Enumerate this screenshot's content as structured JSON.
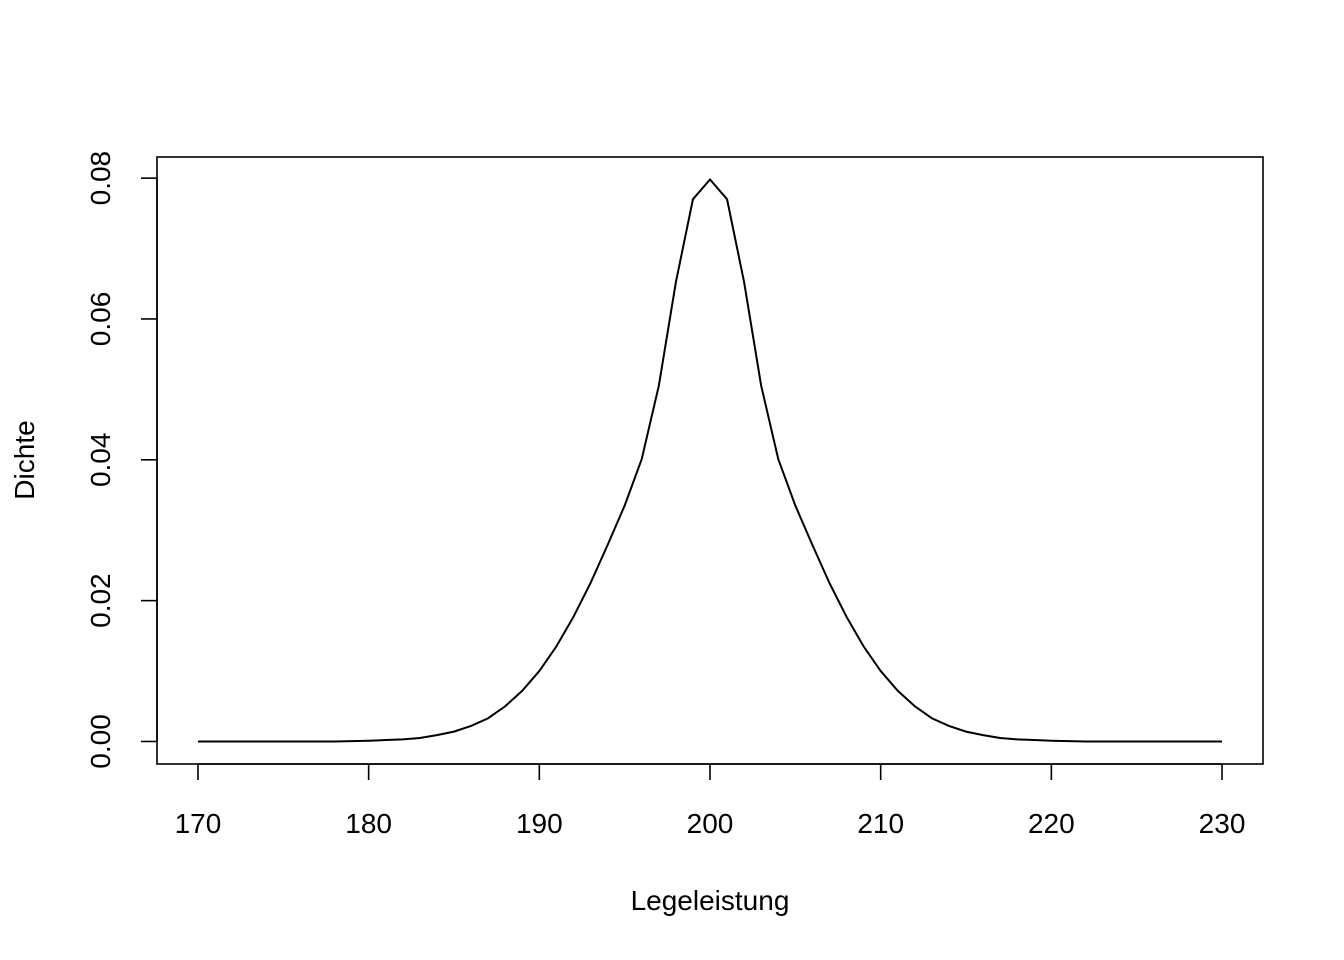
{
  "chart_data": {
    "type": "line",
    "title": "",
    "xlabel": "Legeleistung",
    "ylabel": "Dichte",
    "xlim": [
      167.6,
      232.4
    ],
    "ylim": [
      -0.0032,
      0.083
    ],
    "x_ticks": [
      170,
      180,
      190,
      200,
      210,
      220,
      230
    ],
    "x_tick_labels": [
      "170",
      "180",
      "190",
      "200",
      "210",
      "220",
      "230"
    ],
    "y_ticks": [
      0.0,
      0.02,
      0.04,
      0.06,
      0.08
    ],
    "y_tick_labels": [
      "0.00",
      "0.02",
      "0.04",
      "0.06",
      "0.08"
    ],
    "grid": false,
    "line_color": "#000000",
    "series": [
      {
        "x": [
          170,
          172,
          174,
          176,
          178,
          180,
          181,
          182,
          183,
          184,
          185,
          186,
          187,
          188,
          189,
          190,
          191,
          192,
          193,
          194,
          195,
          196,
          197,
          198,
          199,
          200,
          201,
          202,
          203,
          204,
          205,
          206,
          207,
          208,
          209,
          210,
          211,
          212,
          213,
          214,
          215,
          216,
          217,
          218,
          219,
          220,
          222,
          224,
          226,
          228,
          230
        ],
        "y": [
          0.0,
          0.0,
          0.0,
          0.0,
          0.0,
          0.0001,
          0.0002,
          0.0003,
          0.0005,
          0.0009,
          0.0014,
          0.0022,
          0.0033,
          0.005,
          0.0072,
          0.01,
          0.0135,
          0.0177,
          0.0225,
          0.0279,
          0.0335,
          0.0401,
          0.0505,
          0.0652,
          0.077,
          0.0798,
          0.077,
          0.0652,
          0.0505,
          0.0401,
          0.0335,
          0.0279,
          0.0225,
          0.0177,
          0.0135,
          0.01,
          0.0072,
          0.005,
          0.0033,
          0.0022,
          0.0014,
          0.0009,
          0.0005,
          0.0003,
          0.0002,
          0.0001,
          0.0,
          0.0,
          0.0,
          0.0,
          0.0
        ]
      }
    ]
  }
}
